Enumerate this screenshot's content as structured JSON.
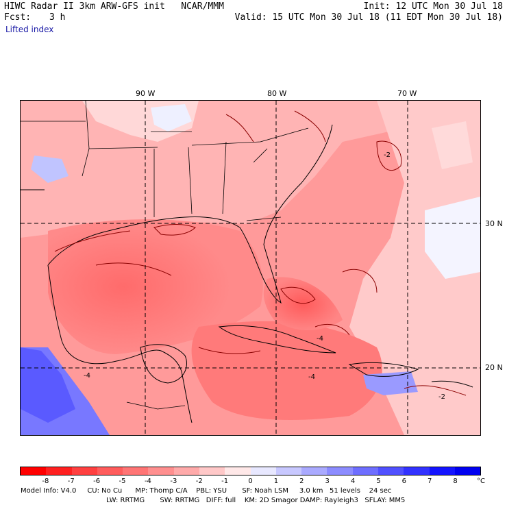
{
  "header": {
    "model_line": "HIWC Radar II 3km ARW-GFS init   NCAR/MMM",
    "init": "Init: 12 UTC Mon 30 Jul 18",
    "fcst_label": "Fcst:",
    "fcst_value": "3 h",
    "valid": "Valid: 15 UTC Mon 30 Jul 18 (11 EDT Mon 30 Jul 18)",
    "field": "Lifted index"
  },
  "axes": {
    "lon_labels": [
      "90 W",
      "80 W",
      "70 W"
    ],
    "lat_labels": [
      "30 N",
      "20 N"
    ]
  },
  "contour_labels": [
    "-2",
    "-4",
    "-4",
    "-4",
    "-2"
  ],
  "colorbar": {
    "labels": [
      "-8",
      "-7",
      "-6",
      "-5",
      "-4",
      "-3",
      "-2",
      "-1",
      "0",
      "1",
      "2",
      "3",
      "4",
      "5",
      "6",
      "7",
      "8"
    ],
    "unit": "°C",
    "colors": [
      "#ff0000",
      "#ff2020",
      "#ff4040",
      "#ff5c5c",
      "#ff7575",
      "#ff8f8f",
      "#ffaaaa",
      "#ffc8c8",
      "#ffe8e8",
      "#e8e8ff",
      "#c8c8ff",
      "#aaaaff",
      "#8c8cff",
      "#6e6eff",
      "#5050ff",
      "#3232ff",
      "#1414ff",
      "#0000f0"
    ]
  },
  "model_info": {
    "line1": "Model Info: V4.0     CU: No Cu      MP: Thomp C/A    PBL: YSU       SF: Noah LSM     3.0 km   51 levels    24 sec",
    "line2": "LW: RRTMG       SW: RRTMG   DIFF: full    KM: 2D Smagor DAMP: Rayleigh3   SFLAY: MM5"
  }
}
